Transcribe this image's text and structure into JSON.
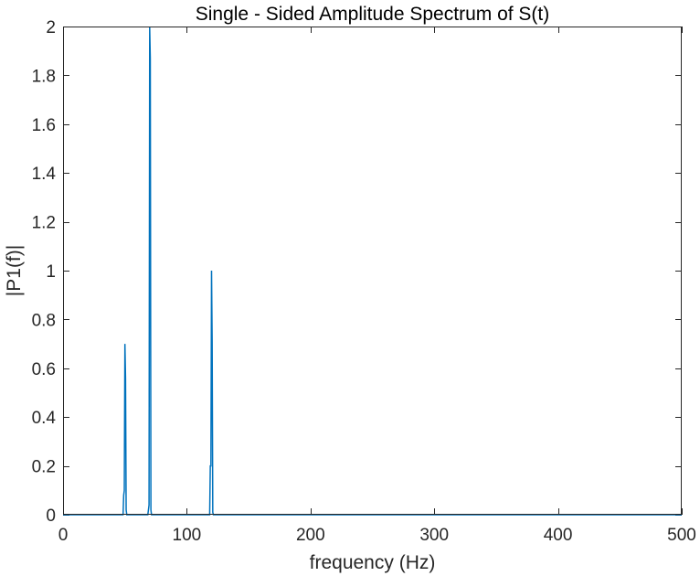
{
  "chart_data": {
    "type": "line",
    "title": "Single - Sided Amplitude Spectrum of S(t)",
    "xlabel": "frequency (Hz)",
    "ylabel": "|P1(f)|",
    "xlim": [
      0,
      500
    ],
    "ylim": [
      0,
      2
    ],
    "xticks": [
      0,
      100,
      200,
      300,
      400,
      500
    ],
    "xtick_labels": [
      "0",
      "100",
      "200",
      "300",
      "400",
      "500"
    ],
    "yticks": [
      0,
      0.2,
      0.4,
      0.6,
      0.8,
      1,
      1.2,
      1.4,
      1.6,
      1.8,
      2
    ],
    "ytick_labels": [
      "0",
      "0.2",
      "0.4",
      "0.6",
      "0.8",
      "1",
      "1.2",
      "1.4",
      "1.6",
      "1.8",
      "2"
    ],
    "grid": false,
    "box": true,
    "series": [
      {
        "name": "|P1(f)|",
        "color": "#0072BD",
        "x": [
          0,
          48.5,
          49,
          49.5,
          50,
          50.5,
          51,
          51.5,
          68.5,
          69,
          69.5,
          70,
          70.5,
          71,
          71.5,
          118.5,
          119,
          119.5,
          120,
          120.5,
          121,
          121.5,
          500
        ],
        "y": [
          0,
          0,
          0.08,
          0.1,
          0.7,
          0.56,
          0.02,
          0,
          0,
          0.02,
          0.04,
          2.0,
          1.87,
          0.02,
          0,
          0,
          0.2,
          0.2,
          1.0,
          0.71,
          0.01,
          0,
          0
        ]
      }
    ]
  }
}
